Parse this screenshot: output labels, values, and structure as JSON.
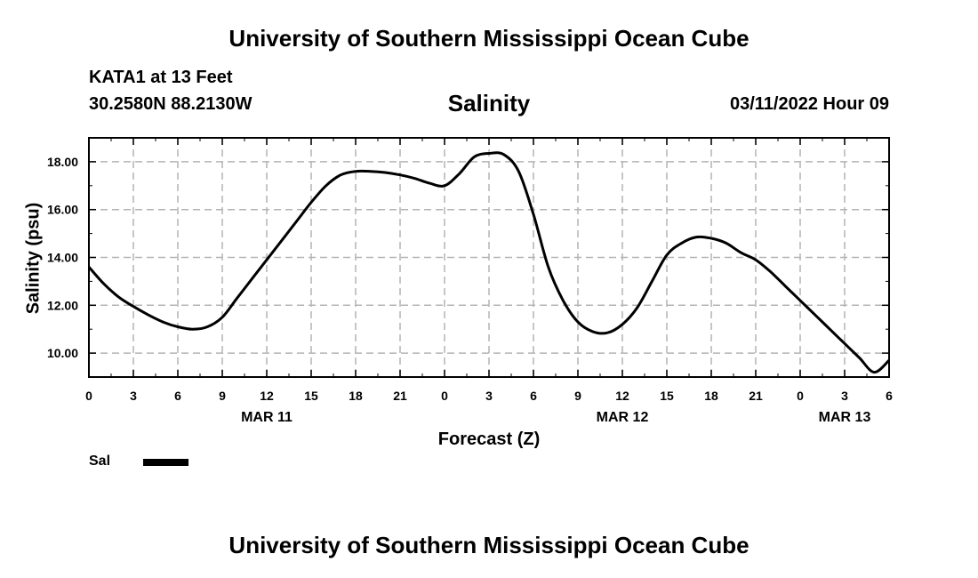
{
  "header": {
    "title_top": "University of Southern Mississippi Ocean Cube",
    "station": "KATA1 at 13 Feet",
    "coords": "30.2580N  88.2130W",
    "variable": "Salinity",
    "datetime": "03/11/2022 Hour 09",
    "title_bottom": "University of Southern Mississippi Ocean Cube"
  },
  "legend": {
    "label": "Sal"
  },
  "chart_data": {
    "type": "line",
    "title": "Salinity",
    "xlabel": "Forecast (Z)",
    "ylabel": "Salinity (psu)",
    "x_ticks": [
      "0",
      "3",
      "6",
      "9",
      "12",
      "15",
      "18",
      "21",
      "0",
      "3",
      "6",
      "9",
      "12",
      "15",
      "18",
      "21",
      "0",
      "3",
      "6"
    ],
    "date_labels": [
      {
        "tick_index": 4,
        "label": "MAR 11"
      },
      {
        "tick_index": 12,
        "label": "MAR 12"
      },
      {
        "tick_index": 17,
        "label": "MAR 13"
      }
    ],
    "y_ticks": [
      "10.00",
      "12.00",
      "14.00",
      "16.00",
      "18.00"
    ],
    "xlim": [
      0,
      54
    ],
    "ylim": [
      9.0,
      19.0
    ],
    "grid": true,
    "series": [
      {
        "name": "Sal",
        "color": "#000000",
        "x": [
          0,
          1,
          2,
          3,
          4,
          5,
          6,
          7,
          8,
          9,
          10,
          11,
          12,
          13,
          14,
          15,
          16,
          17,
          18,
          19,
          20,
          21,
          22,
          23,
          24,
          25,
          26,
          27,
          28,
          29,
          30,
          31,
          32,
          33,
          34,
          35,
          36,
          37,
          38,
          39,
          40,
          41,
          42,
          43,
          44,
          45,
          46,
          47,
          48,
          49,
          50,
          51,
          52,
          53,
          54
        ],
        "values": [
          13.6,
          12.9,
          12.35,
          11.95,
          11.6,
          11.3,
          11.1,
          11.0,
          11.1,
          11.5,
          12.3,
          13.1,
          13.9,
          14.7,
          15.5,
          16.3,
          17.0,
          17.45,
          17.6,
          17.6,
          17.55,
          17.45,
          17.3,
          17.1,
          17.0,
          17.5,
          18.2,
          18.35,
          18.3,
          17.6,
          15.8,
          13.6,
          12.2,
          11.3,
          10.9,
          10.85,
          11.2,
          11.9,
          13.0,
          14.1,
          14.6,
          14.85,
          14.8,
          14.6,
          14.2,
          13.9,
          13.4,
          12.8,
          12.2,
          11.6,
          11.0,
          10.4,
          9.8,
          9.2,
          9.7
        ]
      }
    ]
  }
}
